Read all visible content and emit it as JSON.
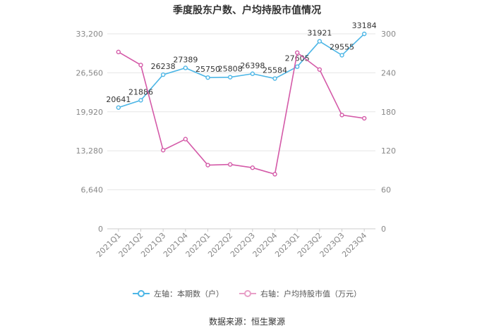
{
  "chart_data": {
    "type": "line",
    "title": "季度股东户数、户均持股市值情况",
    "categories": [
      "2021Q1",
      "2021Q2",
      "2021Q3",
      "2021Q4",
      "2022Q1",
      "2022Q2",
      "2022Q3",
      "2022Q4",
      "2023Q1",
      "2023Q2",
      "2023Q3",
      "2023Q4"
    ],
    "left_axis": {
      "ticks": [
        0,
        6640,
        13280,
        19920,
        26560,
        33200
      ],
      "tick_labels": [
        "0",
        "6,640",
        "13,280",
        "19,920",
        "26,560",
        "33,200"
      ],
      "ylim": [
        0,
        33200
      ]
    },
    "right_axis": {
      "ticks": [
        0,
        60,
        120,
        180,
        240,
        300
      ],
      "tick_labels": [
        "0",
        "60",
        "120",
        "180",
        "240",
        "300"
      ],
      "ylim": [
        0,
        300
      ]
    },
    "series": [
      {
        "name": "左轴：本期数（户）",
        "axis": "left",
        "color": "#4db6e6",
        "values": [
          20641,
          21886,
          26238,
          27389,
          25750,
          25808,
          26398,
          25584,
          27605,
          31921,
          29555,
          33184
        ],
        "labels": [
          "20641",
          "21886",
          "26238",
          "27389",
          "25750",
          "25808",
          "26398",
          "25584",
          "27605",
          "31921",
          "29555",
          "33184"
        ]
      },
      {
        "name": "右轴：户均持股市值（万元）",
        "axis": "right",
        "color": "#d45aa8",
        "values": [
          272,
          252,
          121,
          138,
          98,
          99,
          94,
          84,
          271,
          245,
          175,
          170
        ]
      }
    ],
    "legend_position": "bottom",
    "grid": "horizontal"
  },
  "source_text": "数据来源：恒生聚源"
}
